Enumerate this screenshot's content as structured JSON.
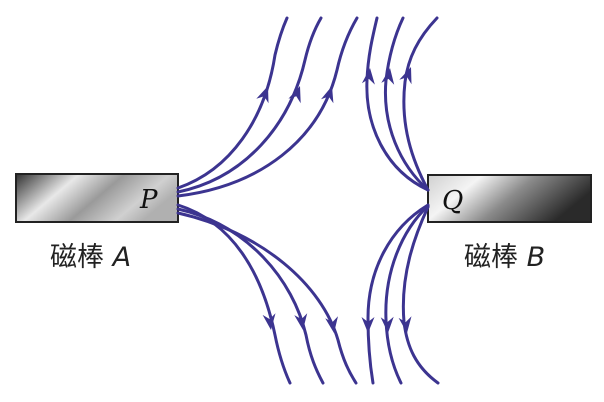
{
  "magnet_a": {
    "name": "磁棒",
    "letter": "A",
    "pole": "P"
  },
  "magnet_b": {
    "name": "磁棒",
    "letter": "B",
    "pole": "Q"
  },
  "colors": {
    "field_line": "#3c3490",
    "magnet_dark": "#2e2e2e",
    "magnet_light": "#f2f2f2"
  }
}
